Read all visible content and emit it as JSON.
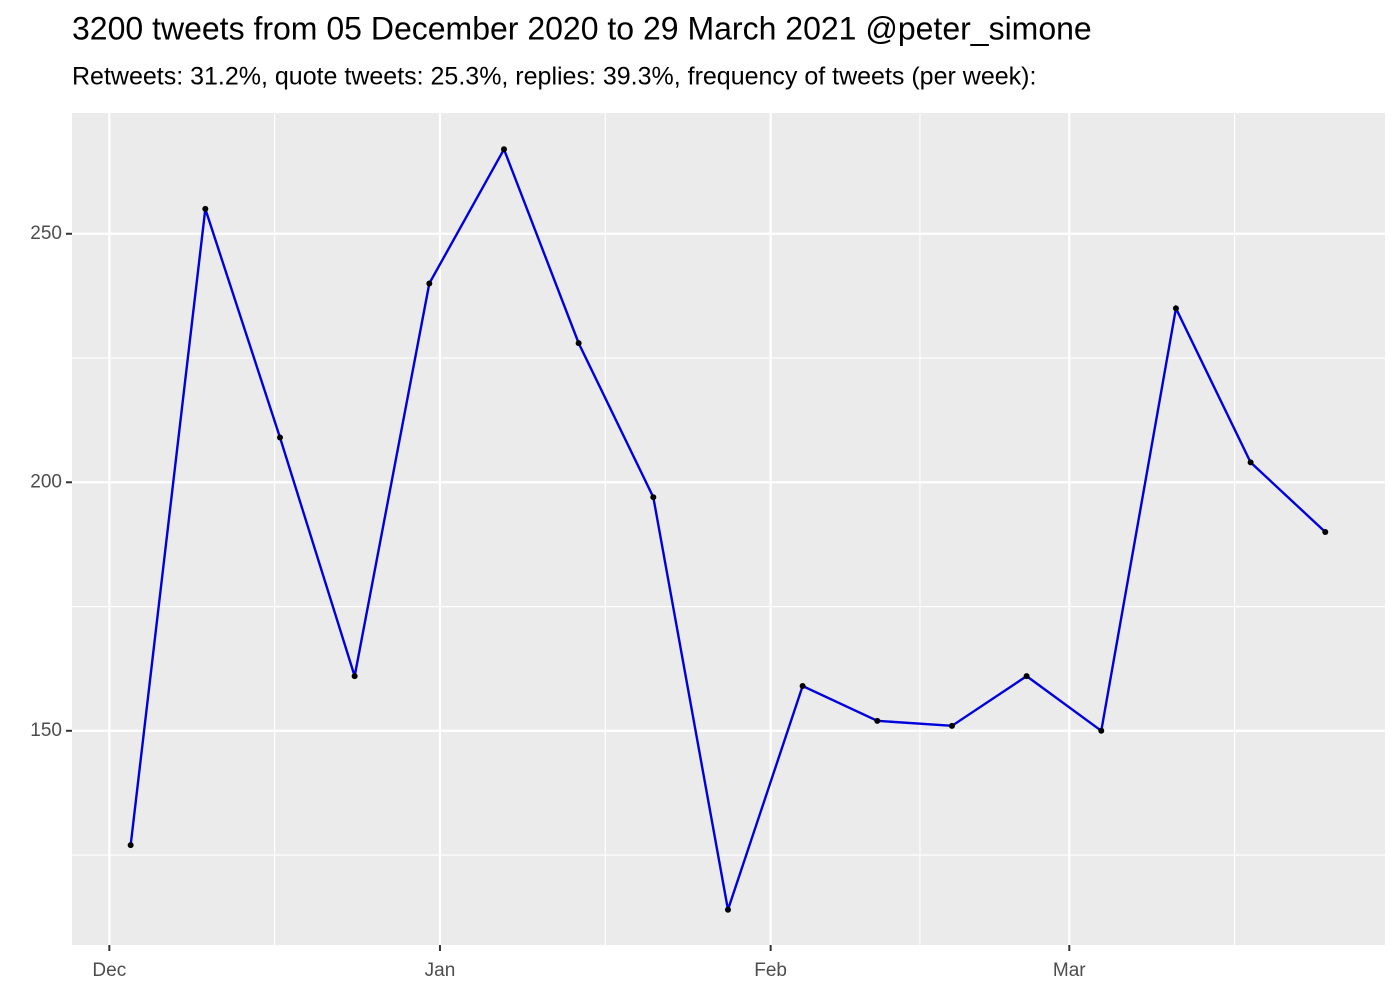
{
  "chart_data": {
    "type": "line",
    "title": "3200 tweets from 05 December 2020 to 29 March 2021 @peter_simone",
    "subtitle": "Retweets: 31.2%, quote tweets: 25.3%, replies: 39.3%, frequency of tweets (per week):",
    "x": [
      18599,
      18606,
      18613,
      18620,
      18627,
      18634,
      18641,
      18648,
      18655,
      18662,
      18669,
      18676,
      18683,
      18690,
      18697,
      18704,
      18711
    ],
    "values": [
      127,
      255,
      209,
      161,
      240,
      267,
      228,
      197,
      114,
      159,
      152,
      151,
      161,
      150,
      235,
      204,
      190
    ],
    "color": "#0000dd",
    "point_color": "#000000",
    "xlim": [
      18593.5,
      18716.6
    ],
    "xticks": [
      {
        "value": 18597,
        "label": "Dec"
      },
      {
        "value": 18628,
        "label": "Jan"
      },
      {
        "value": 18659,
        "label": "Feb"
      },
      {
        "value": 18687,
        "label": "Mar"
      }
    ],
    "xminor": [
      18612.5,
      18643.5,
      18673,
      18702.5
    ],
    "ylim": [
      106.9,
      274.3
    ],
    "yticks": [
      150,
      200,
      250
    ],
    "yminor": [
      125,
      175,
      225
    ],
    "grid": true
  }
}
